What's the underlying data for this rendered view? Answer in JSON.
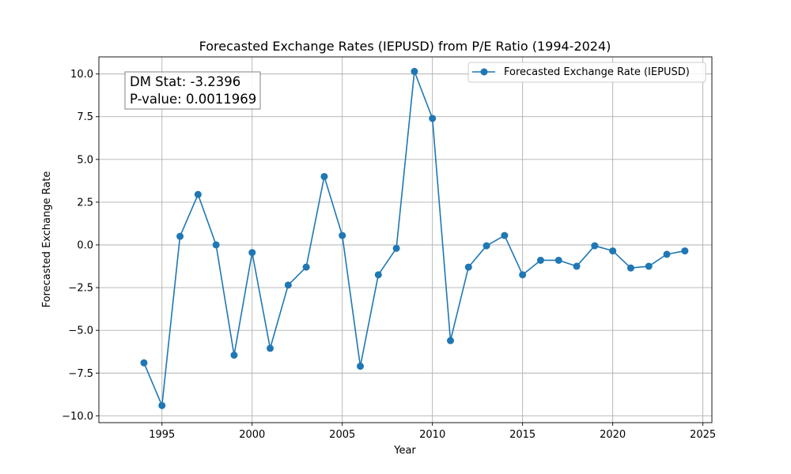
{
  "chart_data": {
    "type": "line",
    "title": "Forecasted Exchange Rates (IEPUSD) from P/E Ratio (1994-2024)",
    "xlabel": "Year",
    "ylabel": "Forecasted Exchange Rate",
    "xlim": [
      1991.5,
      2025.5
    ],
    "ylim": [
      -10.4,
      11.0
    ],
    "x_ticks": [
      1995,
      2000,
      2005,
      2010,
      2015,
      2020,
      2025
    ],
    "x_tick_labels": [
      "1995",
      "2000",
      "2005",
      "2010",
      "2015",
      "2020",
      "2025"
    ],
    "y_ticks": [
      -10.0,
      -7.5,
      -5.0,
      -2.5,
      0.0,
      2.5,
      5.0,
      7.5,
      10.0
    ],
    "y_tick_labels": [
      "−10.0",
      "−7.5",
      "−5.0",
      "−2.5",
      "0.0",
      "2.5",
      "5.0",
      "7.5",
      "10.0"
    ],
    "grid": true,
    "legend_position": "top-right",
    "series": [
      {
        "name": "Forecasted Exchange Rate (IEPUSD)",
        "color": "#1f77b4",
        "marker": "circle",
        "x": [
          1994,
          1995,
          1996,
          1997,
          1998,
          1999,
          2000,
          2001,
          2002,
          2003,
          2004,
          2005,
          2006,
          2007,
          2008,
          2009,
          2010,
          2011,
          2012,
          2013,
          2014,
          2015,
          2016,
          2017,
          2018,
          2019,
          2020,
          2021,
          2022,
          2023,
          2024
        ],
        "y": [
          -6.9,
          -9.4,
          0.5,
          2.95,
          0.0,
          -6.45,
          -0.45,
          -6.05,
          -2.35,
          -1.3,
          4.0,
          0.55,
          -7.1,
          -1.75,
          -0.2,
          10.15,
          7.4,
          -5.6,
          -1.3,
          -0.05,
          0.55,
          -1.75,
          -0.9,
          -0.9,
          -1.25,
          -0.05,
          -0.35,
          -1.35,
          -1.25,
          -0.55,
          -0.35
        ]
      }
    ],
    "annotation": {
      "dm_stat": "DM Stat: -3.2396",
      "p_value": "P-value: 0.0011969"
    }
  }
}
